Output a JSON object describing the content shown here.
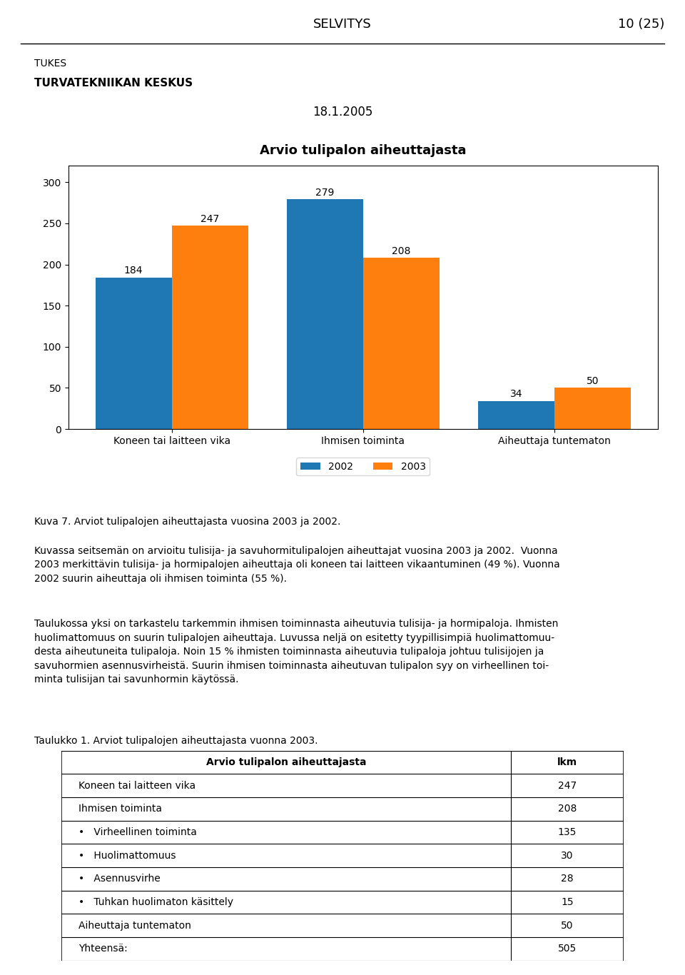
{
  "chart_data": [
    {
      "type": "bar",
      "title": "Arvio tulipalon aiheuttajasta",
      "categories": [
        "Koneen tai laitteen vika",
        "Ihmisen toiminta",
        "Aiheuttaja tuntematon"
      ],
      "series": [
        {
          "name": "2002",
          "values": [
            184,
            279,
            34
          ]
        },
        {
          "name": "2003",
          "values": [
            247,
            208,
            50
          ]
        }
      ],
      "ylim": [
        0,
        320
      ],
      "yticks": [
        0,
        50,
        100,
        150,
        200,
        250,
        300
      ],
      "data_labels": true,
      "grid": false,
      "legend": "upper center",
      "annotations": [
        "SELVITYS",
        "10 (25)",
        "TUKES",
        "TURVATEKNIIKAN KESKUS",
        "18.1.2005",
        "Kuva 7. Arviot tulipalojen aiheuttajasta vuosina 2003 ja 2002.",
        "Kuvassa seitsemän on arvioitu tulisija- ja savuhormitulipalojen aiheuttajat vuosina 2003 ja 2002.  Vuonna\n2003 merkittävin tulisija- ja hormipalojen aiheuttaja oli koneen tai laitteen vikaantuminen (49 %). Vuonna\n2002 suurin aiheuttaja oli ihmisen toiminta (55 %).",
        "Taulukossa yksi on tarkastelu tarkemmin ihmisen toiminnasta aiheutuvia tulisija- ja hormipaloja. Ihmisten\nhuolimattomuus on suurin tulipalojen aiheuttaja. Luvussa neljä on esitetty tyypillisimpiä huolimattomuu-\ndesta aiheutuneita tulipaloja. Noin 15 % ihmisten toiminnasta aiheutuvia tulipaloja johtuu tulisijojen ja\nsavuhormien asennusvirheistä. Suurin ihmisen toiminnasta aiheutuvan tulipalon syy on virheellinen toi-\nminta tulisijan tai savunhormin käytössä."
      ]
    },
    {
      "type": "table",
      "title": "Taulukko 1. Arviot tulipalojen aiheuttajasta vuonna 2003.",
      "columns": [
        "Arvio tulipalon aiheuttajasta",
        "lkm"
      ],
      "categories": [
        "Koneen tai laitteen vika",
        "Ihmisen toiminta",
        "•   Virheellinen toiminta",
        "•   Huolimattomuus",
        "•   Asennusvirhe",
        "•   Tuhkan huolimaton käsittely",
        "Aiheuttaja tuntematon",
        "Yhteensä:"
      ],
      "values": [
        247,
        208,
        135,
        30,
        28,
        15,
        50,
        505
      ]
    }
  ]
}
